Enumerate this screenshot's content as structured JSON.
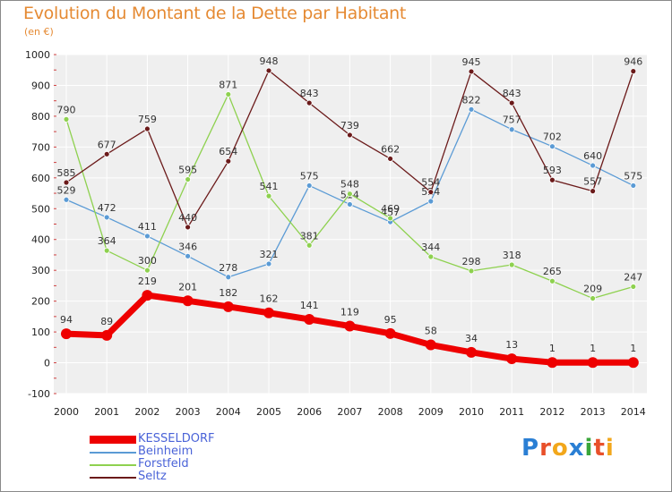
{
  "title": "Evolution du Montant de la Dette par Habitant",
  "unit": "(en €)",
  "logo": {
    "text": "Proxiti",
    "colors": [
      "#2a7fd4",
      "#e8502a",
      "#f2a71b",
      "#2a7fd4",
      "#3aa63a",
      "#e8502a",
      "#f2a71b"
    ]
  },
  "chart_data": {
    "type": "line",
    "title": "Evolution du Montant de la Dette par Habitant",
    "subtitle": "(en €)",
    "x": [
      "2000",
      "2001",
      "2002",
      "2003",
      "2004",
      "2005",
      "2006",
      "2007",
      "2008",
      "2009",
      "2010",
      "2011",
      "2012",
      "2013",
      "2014"
    ],
    "ylim": [
      -100,
      1000
    ],
    "yticks": [
      -100,
      0,
      100,
      200,
      300,
      400,
      500,
      600,
      700,
      800,
      900,
      1000
    ],
    "grid": true,
    "legend": "bottom-left",
    "series": [
      {
        "name": "KESSELDORF",
        "color": "#ee0000",
        "values": [
          94,
          89,
          219,
          201,
          182,
          162,
          141,
          119,
          95,
          58,
          34,
          13,
          1,
          1,
          1
        ]
      },
      {
        "name": "Beinheim",
        "color": "#5b9bd5",
        "values": [
          529,
          472,
          411,
          346,
          278,
          321,
          575,
          514,
          457,
          524,
          822,
          757,
          702,
          640,
          575
        ]
      },
      {
        "name": "Forstfeld",
        "color": "#8ed14f",
        "values": [
          790,
          364,
          300,
          595,
          871,
          541,
          381,
          548,
          469,
          344,
          298,
          318,
          265,
          209,
          247
        ]
      },
      {
        "name": "Seltz",
        "color": "#6b1a1a",
        "values": [
          585,
          677,
          759,
          440,
          654,
          948,
          843,
          739,
          662,
          554,
          945,
          843,
          593,
          557,
          946
        ]
      }
    ]
  }
}
